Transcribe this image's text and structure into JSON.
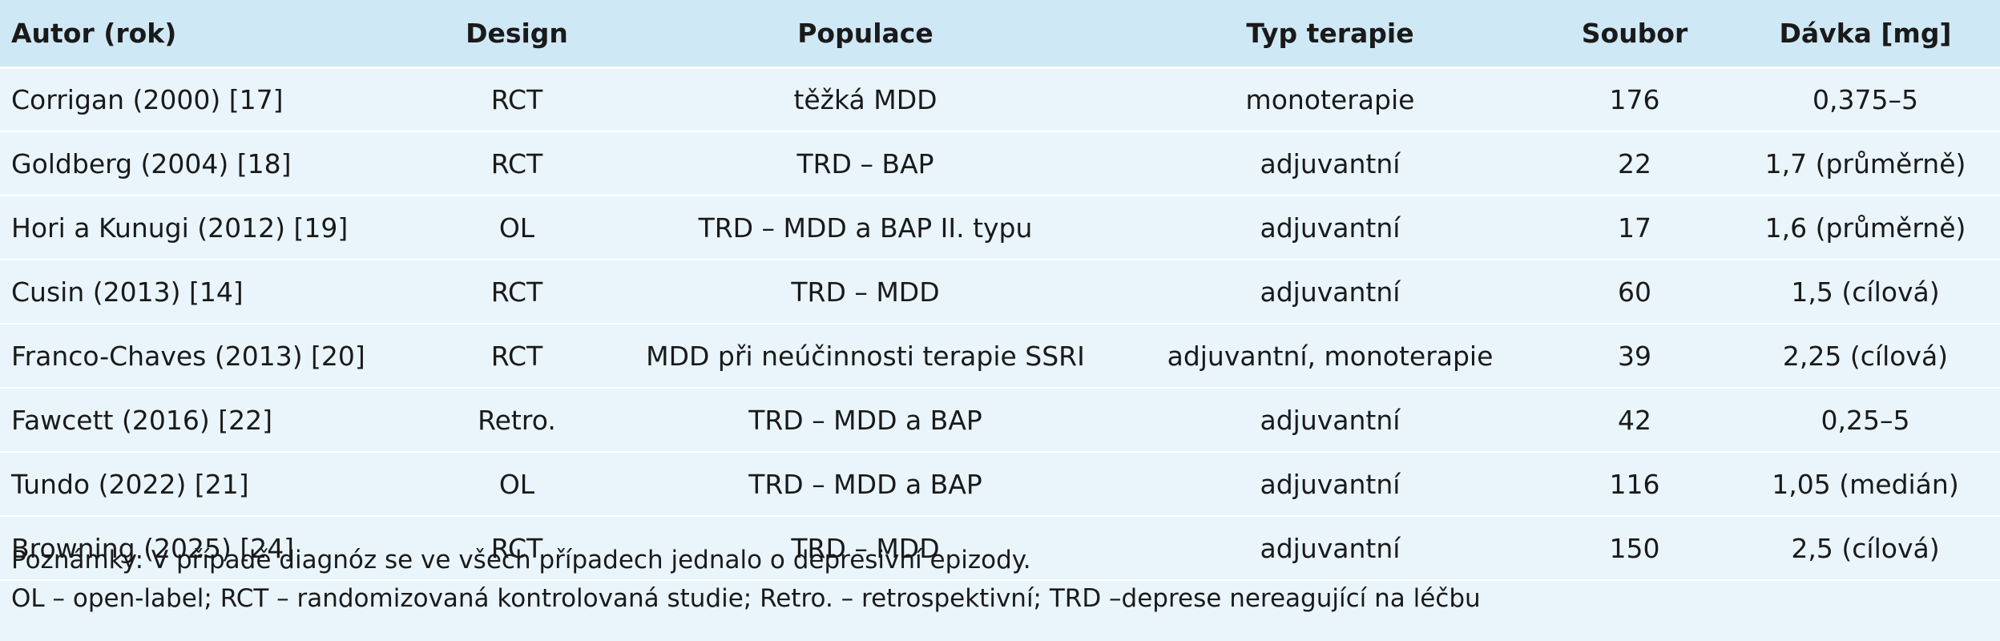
{
  "table": {
    "headers": [
      "Autor (rok)",
      "Design",
      "Populace",
      "Typ terapie",
      "Soubor",
      "Dávka [mg]"
    ],
    "rows": [
      [
        "Corrigan (2000) [17]",
        "RCT",
        "těžká MDD",
        "monoterapie",
        "176",
        "0,375–5"
      ],
      [
        "Goldberg (2004) [18]",
        "RCT",
        "TRD – BAP",
        "adjuvantní",
        "22",
        "1,7 (průměrně)"
      ],
      [
        "Hori a Kunugi (2012) [19]",
        "OL",
        "TRD – MDD a BAP II. typu",
        "adjuvantní",
        "17",
        "1,6 (průměrně)"
      ],
      [
        "Cusin (2013) [14]",
        "RCT",
        "TRD – MDD",
        "adjuvantní",
        "60",
        "1,5 (cílová)"
      ],
      [
        "Franco-Chaves (2013) [20]",
        "RCT",
        "MDD při neúčinnosti terapie SSRI",
        "adjuvantní, monoterapie",
        "39",
        "2,25 (cílová)"
      ],
      [
        "Fawcett (2016) [22]",
        "Retro.",
        "TRD – MDD a BAP",
        "adjuvantní",
        "42",
        "0,25–5"
      ],
      [
        "Tundo (2022) [21]",
        "OL",
        "TRD – MDD a BAP",
        "adjuvantní",
        "116",
        "1,05 (medián)"
      ],
      [
        "Browning (2025) [24]",
        "RCT",
        "TRD – MDD",
        "adjuvantní",
        "150",
        "2,5 (cílová)"
      ]
    ]
  },
  "notes": {
    "line1": "Poznámky: V případě diagnóz se ve všech případech jednalo o depresivní epizody.",
    "line2": "OL – open-label; RCT – randomizovaná kontrolovaná studie; Retro. – retrospektivní; TRD –deprese nereagující na léčbu"
  }
}
